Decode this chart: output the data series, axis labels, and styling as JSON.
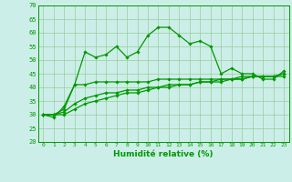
{
  "xlabel": "Humidité relative (%)",
  "bg_color": "#cceee8",
  "grid_color": "#99cc99",
  "line_color": "#009900",
  "ylim": [
    20,
    70
  ],
  "xlim": [
    -0.5,
    23.5
  ],
  "yticks": [
    20,
    25,
    30,
    35,
    40,
    45,
    50,
    55,
    60,
    65,
    70
  ],
  "xticks": [
    0,
    1,
    2,
    3,
    4,
    5,
    6,
    7,
    8,
    9,
    10,
    11,
    12,
    13,
    14,
    15,
    16,
    17,
    18,
    19,
    20,
    21,
    22,
    23
  ],
  "series": [
    [
      30,
      29,
      33,
      41,
      53,
      51,
      52,
      55,
      51,
      53,
      59,
      62,
      62,
      59,
      56,
      57,
      55,
      45,
      47,
      45,
      45,
      43,
      43,
      46
    ],
    [
      30,
      30,
      32,
      41,
      41,
      42,
      42,
      42,
      42,
      42,
      42,
      43,
      43,
      43,
      43,
      43,
      43,
      43,
      43,
      43,
      44,
      44,
      44,
      44
    ],
    [
      30,
      30,
      31,
      34,
      36,
      37,
      38,
      38,
      39,
      39,
      40,
      40,
      41,
      41,
      41,
      42,
      42,
      42,
      43,
      43,
      44,
      44,
      44,
      45
    ],
    [
      30,
      30,
      30,
      32,
      34,
      35,
      36,
      37,
      38,
      38,
      39,
      40,
      40,
      41,
      41,
      42,
      42,
      43,
      43,
      44,
      44,
      44,
      44,
      45
    ]
  ]
}
